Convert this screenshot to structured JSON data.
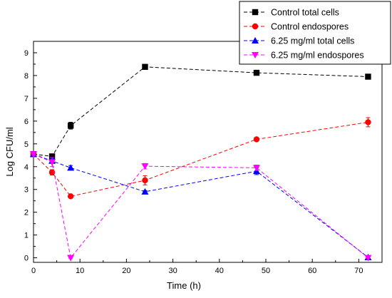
{
  "chart_data": {
    "type": "line",
    "xlabel": "Time (h)",
    "ylabel": "Log CFU/ml",
    "xlim": [
      0,
      75
    ],
    "ylim": [
      -0.2,
      9.5
    ],
    "x_ticks": [
      "0",
      "10",
      "20",
      "30",
      "40",
      "50",
      "60",
      "70"
    ],
    "y_ticks": [
      "0",
      "1",
      "2",
      "3",
      "4",
      "5",
      "6",
      "7",
      "8",
      "9"
    ],
    "legend_position": "top-right",
    "series": [
      {
        "name": "Control total cells",
        "marker": "square",
        "color": "#000000",
        "points": [
          [
            0,
            4.55
          ],
          [
            4,
            4.45
          ],
          [
            8,
            5.8
          ],
          [
            24,
            8.38
          ],
          [
            48,
            8.12
          ],
          [
            72,
            7.95
          ]
        ],
        "errors": [
          0.05,
          0.05,
          0.15,
          0.05,
          0.08,
          0.05
        ]
      },
      {
        "name": "Control endospores",
        "marker": "circle",
        "color": "#ff0000",
        "points": [
          [
            0,
            4.55
          ],
          [
            4,
            3.75
          ],
          [
            8,
            2.7
          ],
          [
            24,
            3.4
          ],
          [
            48,
            5.2
          ],
          [
            72,
            5.95
          ]
        ],
        "errors": [
          0.05,
          0.12,
          0.05,
          0.2,
          0.05,
          0.2
        ]
      },
      {
        "name": "6.25 mg/ml total cells",
        "marker": "triangle-up",
        "color": "#0000ff",
        "points": [
          [
            0,
            4.55
          ],
          [
            4,
            4.25
          ],
          [
            8,
            3.95
          ],
          [
            24,
            2.9
          ],
          [
            48,
            3.8
          ],
          [
            72,
            0.02
          ]
        ],
        "errors": [
          0.05,
          0.1,
          0.1,
          0.05,
          0.15,
          0.02
        ]
      },
      {
        "name": "6.25 mg/ml endospores",
        "marker": "triangle-down",
        "color": "#ff00ff",
        "points": [
          [
            0,
            4.55
          ],
          [
            4,
            4.2
          ],
          [
            8,
            0.0
          ],
          [
            24,
            4.02
          ],
          [
            48,
            3.95
          ],
          [
            72,
            0.0
          ]
        ],
        "errors": [
          0.05,
          0.2,
          0.02,
          0.12,
          0.12,
          0.02
        ]
      }
    ]
  }
}
